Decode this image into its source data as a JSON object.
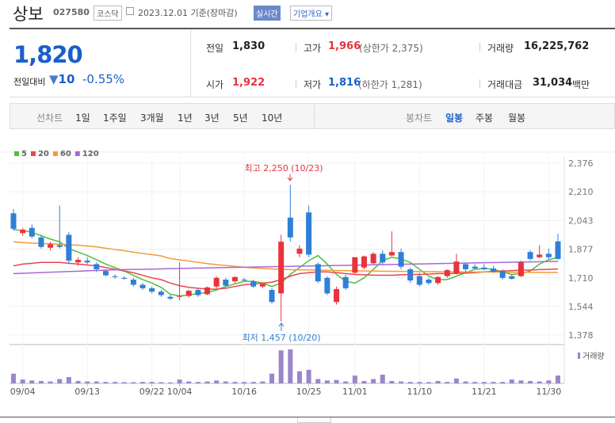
{
  "header": {
    "name": "상보",
    "code": "027580",
    "market": "코스닥",
    "date": "2023.12.01 기준(장마감)",
    "realtime": "실시간",
    "company_info": "기업개요"
  },
  "summary": {
    "price": "1,820",
    "change_label": "전일대비",
    "change": "10",
    "change_pct": "-0.55%",
    "stats": [
      {
        "label": "전일",
        "value": "1,830"
      },
      {
        "label": "고가",
        "value": "1,966",
        "note": "(상한가 2,375)"
      },
      {
        "label": "거래량",
        "value": "16,225,762"
      },
      {
        "label": "시가",
        "value": "1,922"
      },
      {
        "label": "저가",
        "value": "1,816",
        "note": "(하한가 1,281)"
      },
      {
        "label": "거래대금",
        "value": "31,034",
        "unit": "백만"
      }
    ]
  },
  "tabs": {
    "line_label": "선차트",
    "line": [
      "1일",
      "1주일",
      "3개월",
      "1년",
      "3년",
      "5년",
      "10년"
    ],
    "candle_label": "봉차트",
    "candle": [
      "일봉",
      "주봉",
      "월봉"
    ]
  },
  "chart_data": {
    "type": "candlestick",
    "categories": [
      null,
      "09/04",
      null,
      null,
      null,
      null,
      null,
      null,
      "09/13",
      null,
      null,
      null,
      null,
      null,
      null,
      "09/22",
      null,
      null,
      "10/04",
      null,
      null,
      null,
      null,
      null,
      null,
      "10/16",
      null,
      null,
      null,
      null,
      null,
      null,
      "10/25",
      null,
      null,
      null,
      null,
      "11/01",
      null,
      null,
      null,
      null,
      null,
      null,
      "11/10",
      null,
      null,
      null,
      null,
      null,
      null,
      "11/21",
      null,
      null,
      null,
      null,
      null,
      null,
      "11/30",
      null
    ],
    "open": [
      2085,
      1970,
      2000,
      1945,
      1885,
      1900,
      1960,
      1800,
      1810,
      1790,
      1750,
      1720,
      1710,
      1700,
      1670,
      1650,
      1630,
      1600,
      1600,
      1605,
      1640,
      1615,
      1660,
      1700,
      1690,
      1700,
      1690,
      1660,
      1640,
      1620,
      2060,
      1850,
      2090,
      1790,
      1710,
      1570,
      1715,
      1740,
      1770,
      1795,
      1850,
      1840,
      1860,
      1760,
      1720,
      1700,
      1680,
      1720,
      1735,
      1790,
      1775,
      1770,
      1765,
      1750,
      1720,
      1720,
      1860,
      1830,
      1850,
      1922
    ],
    "high": [
      2110,
      2000,
      2020,
      1960,
      1920,
      2130,
      1975,
      1830,
      1830,
      1800,
      1760,
      1730,
      1720,
      1710,
      1680,
      1660,
      1640,
      1610,
      1800,
      1640,
      1650,
      1660,
      1720,
      1710,
      1720,
      1710,
      1700,
      1680,
      1650,
      1960,
      2250,
      1900,
      2130,
      1800,
      1720,
      1660,
      1730,
      1830,
      1840,
      1860,
      1870,
      1980,
      1880,
      1770,
      1740,
      1710,
      1720,
      1760,
      1850,
      1800,
      1790,
      1790,
      1780,
      1760,
      1730,
      1810,
      1870,
      1900,
      1880,
      1966
    ],
    "low": [
      1985,
      1955,
      1940,
      1880,
      1870,
      1880,
      1790,
      1780,
      1790,
      1745,
      1720,
      1705,
      1700,
      1660,
      1640,
      1620,
      1600,
      1580,
      1580,
      1595,
      1600,
      1610,
      1650,
      1660,
      1680,
      1690,
      1650,
      1650,
      1560,
      1457,
      1920,
      1830,
      1830,
      1680,
      1610,
      1555,
      1640,
      1730,
      1760,
      1790,
      1790,
      1835,
      1760,
      1680,
      1660,
      1670,
      1670,
      1710,
      1730,
      1740,
      1760,
      1755,
      1740,
      1700,
      1700,
      1715,
      1810,
      1825,
      1820,
      1816
    ],
    "close": [
      1995,
      1990,
      1950,
      1890,
      1905,
      1890,
      1810,
      1815,
      1800,
      1760,
      1725,
      1715,
      1705,
      1670,
      1650,
      1630,
      1610,
      1590,
      1605,
      1635,
      1610,
      1655,
      1710,
      1665,
      1715,
      1695,
      1660,
      1675,
      1570,
      1920,
      1945,
      1880,
      1845,
      1690,
      1620,
      1645,
      1650,
      1830,
      1835,
      1850,
      1800,
      1860,
      1775,
      1695,
      1670,
      1680,
      1715,
      1755,
      1805,
      1760,
      1765,
      1760,
      1745,
      1710,
      1705,
      1800,
      1820,
      1845,
      1830,
      1820
    ],
    "up_color": "#e8333b",
    "down_color": "#2f7fd6",
    "series": [
      {
        "name": "5",
        "color": "#4fbf3a",
        "values": [
          1990,
          1985,
          1975,
          1955,
          1935,
          1920,
          1880,
          1860,
          1840,
          1815,
          1790,
          1770,
          1750,
          1725,
          1700,
          1680,
          1655,
          1615,
          1605,
          1610,
          1620,
          1625,
          1640,
          1660,
          1675,
          1690,
          1690,
          1680,
          1660,
          1680,
          1730,
          1770,
          1810,
          1840,
          1790,
          1730,
          1690,
          1680,
          1710,
          1760,
          1810,
          1830,
          1820,
          1800,
          1760,
          1720,
          1700,
          1700,
          1720,
          1740,
          1760,
          1765,
          1760,
          1745,
          1730,
          1735,
          1750,
          1790,
          1815,
          1830
        ]
      },
      {
        "name": "20",
        "color": "#e8474c",
        "values": [
          1780,
          1790,
          1795,
          1800,
          1800,
          1800,
          1795,
          1790,
          1785,
          1780,
          1770,
          1760,
          1750,
          1740,
          1725,
          1710,
          1700,
          1680,
          1665,
          1655,
          1650,
          1645,
          1645,
          1650,
          1660,
          1670,
          1675,
          1680,
          1685,
          1700,
          1720,
          1735,
          1740,
          1745,
          1745,
          1740,
          1735,
          1730,
          1728,
          1726,
          1725,
          1725,
          1728,
          1730,
          1730,
          1732,
          1735,
          1735,
          1736,
          1738,
          1740,
          1745,
          1748,
          1750,
          1752,
          1755,
          1755,
          1758,
          1760,
          1762
        ]
      },
      {
        "name": "60",
        "color": "#f59a3a",
        "values": [
          1920,
          1915,
          1912,
          1910,
          1908,
          1905,
          1902,
          1900,
          1895,
          1890,
          1882,
          1875,
          1868,
          1860,
          1852,
          1845,
          1838,
          1822,
          1815,
          1808,
          1800,
          1793,
          1787,
          1782,
          1777,
          1772,
          1768,
          1765,
          1762,
          1760,
          1758,
          1757,
          1756,
          1755,
          1754,
          1753,
          1752,
          1751,
          1750,
          1750,
          1749,
          1748,
          1748,
          1747,
          1747,
          1746,
          1746,
          1745,
          1745,
          1745,
          1744,
          1744,
          1744,
          1743,
          1743,
          1743,
          1742,
          1742,
          1742,
          1742
        ]
      },
      {
        "name": "120",
        "color": "#a967d8",
        "values": [
          1735,
          1737,
          1739,
          1741,
          1743,
          1745,
          1747,
          1749,
          1751,
          1753,
          1755,
          1757,
          1758,
          1759,
          1760,
          1761,
          1762,
          1764,
          1765,
          1766,
          1767,
          1768,
          1769,
          1770,
          1771,
          1772,
          1773,
          1774,
          1775,
          1776,
          1777,
          1778,
          1779,
          1780,
          1781,
          1782,
          1783,
          1784,
          1785,
          1786,
          1787,
          1788,
          1789,
          1790,
          1791,
          1792,
          1793,
          1794,
          1795,
          1796,
          1797,
          1798,
          1799,
          1800,
          1801,
          1802,
          1803,
          1804,
          1805,
          1806
        ]
      }
    ],
    "volume": {
      "name": "거래량",
      "color": "#9b86cc",
      "ylim": [
        0,
        75000000
      ],
      "values": [
        20000000,
        8000000,
        6000000,
        5000000,
        4000000,
        9000000,
        13000000,
        5000000,
        4000000,
        4000000,
        3000000,
        3000000,
        2500000,
        2500000,
        3000000,
        3000000,
        2500000,
        2000000,
        8000000,
        4000000,
        3000000,
        4000000,
        6000000,
        4000000,
        3000000,
        3000000,
        3000000,
        4000000,
        20000000,
        68000000,
        70000000,
        25000000,
        28000000,
        9000000,
        6000000,
        7000000,
        4000000,
        16000000,
        5000000,
        9000000,
        18000000,
        5000000,
        4000000,
        3000000,
        3000000,
        2500000,
        5000000,
        3000000,
        10000000,
        4000000,
        3000000,
        3000000,
        3000000,
        3000000,
        8000000,
        6000000,
        5000000,
        4000000,
        6000000,
        16225762
      ]
    },
    "ylim": [
      1378,
      2376
    ],
    "yticks": [
      {
        "value": 2376,
        "label": "2,376"
      },
      {
        "value": 2210,
        "label": "2,210"
      },
      {
        "value": 2043,
        "label": "2,043"
      },
      {
        "value": 1877,
        "label": "1,877"
      },
      {
        "value": 1710,
        "label": "1,710"
      },
      {
        "value": 1544,
        "label": "1,544"
      },
      {
        "value": 1378,
        "label": "1,378"
      }
    ],
    "annotations": [
      "최고 2,250 (10/23)",
      "최저 1,457 (10/20)"
    ],
    "grid": true
  }
}
